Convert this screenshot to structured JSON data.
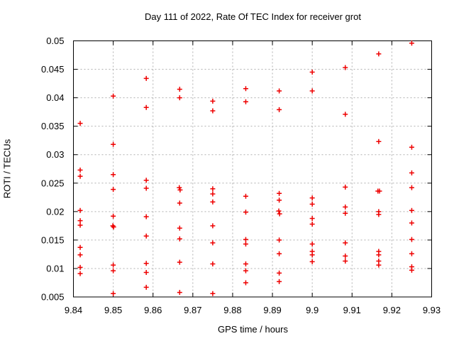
{
  "chart_data": {
    "type": "scatter",
    "title": "Day 111 of 2022, Rate Of TEC Index for receiver grot",
    "xlabel": "GPS time / hours",
    "ylabel": "ROTI / TECUs",
    "xlim": [
      9.84,
      9.93
    ],
    "ylim": [
      0.005,
      0.05
    ],
    "x_ticks": [
      9.84,
      9.85,
      9.86,
      9.87,
      9.88,
      9.89,
      9.9,
      9.91,
      9.92,
      9.93
    ],
    "x_tick_labels": [
      "9.84",
      "9.85",
      "9.86",
      "9.87",
      "9.88",
      "9.89",
      "9.9",
      "9.91",
      "9.92",
      "9.93"
    ],
    "y_ticks": [
      0.005,
      0.01,
      0.015,
      0.02,
      0.025,
      0.03,
      0.035,
      0.04,
      0.045,
      0.05
    ],
    "y_tick_labels": [
      "0.005",
      "0.01",
      "0.015",
      "0.02",
      "0.025",
      "0.03",
      "0.035",
      "0.04",
      "0.045",
      "0.05"
    ],
    "grid": true,
    "legend": "none",
    "marker": {
      "shape": "plus",
      "color": "#ee0000",
      "size": 7
    },
    "colors": {
      "axis": "#000000",
      "grid": "#b0b0b0"
    },
    "series": [
      {
        "name": "ROTI",
        "points": [
          [
            9.8417,
            0.0355
          ],
          [
            9.8417,
            0.0273
          ],
          [
            9.8417,
            0.0262
          ],
          [
            9.8417,
            0.0202
          ],
          [
            9.8417,
            0.0184
          ],
          [
            9.8417,
            0.0176
          ],
          [
            9.8417,
            0.0137
          ],
          [
            9.8417,
            0.0124
          ],
          [
            9.8417,
            0.0102
          ],
          [
            9.8417,
            0.0091
          ],
          [
            9.85,
            0.0403
          ],
          [
            9.85,
            0.0318
          ],
          [
            9.85,
            0.0265
          ],
          [
            9.85,
            0.0239
          ],
          [
            9.85,
            0.0192
          ],
          [
            9.8499,
            0.0175
          ],
          [
            9.8501,
            0.0173
          ],
          [
            9.85,
            0.0106
          ],
          [
            9.85,
            0.0096
          ],
          [
            9.85,
            0.0056
          ],
          [
            9.8583,
            0.0434
          ],
          [
            9.8583,
            0.0383
          ],
          [
            9.8583,
            0.0255
          ],
          [
            9.8583,
            0.0241
          ],
          [
            9.8583,
            0.0191
          ],
          [
            9.8583,
            0.0157
          ],
          [
            9.8583,
            0.0109
          ],
          [
            9.8583,
            0.0093
          ],
          [
            9.8583,
            0.0067
          ],
          [
            9.8667,
            0.0415
          ],
          [
            9.8667,
            0.04
          ],
          [
            9.8666,
            0.0242
          ],
          [
            9.8668,
            0.0238
          ],
          [
            9.8667,
            0.0215
          ],
          [
            9.8667,
            0.0171
          ],
          [
            9.8667,
            0.0152
          ],
          [
            9.8667,
            0.0111
          ],
          [
            9.8667,
            0.0058
          ],
          [
            9.875,
            0.0394
          ],
          [
            9.875,
            0.0377
          ],
          [
            9.875,
            0.024
          ],
          [
            9.875,
            0.0231
          ],
          [
            9.875,
            0.0217
          ],
          [
            9.875,
            0.0175
          ],
          [
            9.875,
            0.0145
          ],
          [
            9.875,
            0.0108
          ],
          [
            9.875,
            0.0056
          ],
          [
            9.8833,
            0.0416
          ],
          [
            9.8833,
            0.0393
          ],
          [
            9.8833,
            0.0227
          ],
          [
            9.8833,
            0.0199
          ],
          [
            9.8833,
            0.0151
          ],
          [
            9.8833,
            0.0143
          ],
          [
            9.8833,
            0.0108
          ],
          [
            9.8833,
            0.0096
          ],
          [
            9.8833,
            0.0075
          ],
          [
            9.8917,
            0.0412
          ],
          [
            9.8917,
            0.0379
          ],
          [
            9.8917,
            0.0232
          ],
          [
            9.8917,
            0.022
          ],
          [
            9.8916,
            0.0201
          ],
          [
            9.8918,
            0.0196
          ],
          [
            9.8917,
            0.015
          ],
          [
            9.8917,
            0.0126
          ],
          [
            9.8917,
            0.0092
          ],
          [
            9.8917,
            0.0077
          ],
          [
            9.9,
            0.0445
          ],
          [
            9.9,
            0.0412
          ],
          [
            9.9,
            0.0224
          ],
          [
            9.9,
            0.0213
          ],
          [
            9.9,
            0.0188
          ],
          [
            9.9,
            0.0178
          ],
          [
            9.9,
            0.0143
          ],
          [
            9.9,
            0.013
          ],
          [
            9.9,
            0.0124
          ],
          [
            9.9,
            0.0112
          ],
          [
            9.9083,
            0.0453
          ],
          [
            9.9083,
            0.0371
          ],
          [
            9.9083,
            0.0243
          ],
          [
            9.9083,
            0.0208
          ],
          [
            9.9083,
            0.0197
          ],
          [
            9.9083,
            0.0145
          ],
          [
            9.9083,
            0.0122
          ],
          [
            9.9083,
            0.0113
          ],
          [
            9.9167,
            0.0477
          ],
          [
            9.9167,
            0.0323
          ],
          [
            9.9165,
            0.0236
          ],
          [
            9.9169,
            0.0236
          ],
          [
            9.9167,
            0.02
          ],
          [
            9.9167,
            0.0195
          ],
          [
            9.9167,
            0.013
          ],
          [
            9.9167,
            0.0124
          ],
          [
            9.9167,
            0.0113
          ],
          [
            9.9167,
            0.0106
          ],
          [
            9.925,
            0.0496
          ],
          [
            9.925,
            0.0313
          ],
          [
            9.925,
            0.0268
          ],
          [
            9.925,
            0.0242
          ],
          [
            9.925,
            0.0202
          ],
          [
            9.925,
            0.018
          ],
          [
            9.925,
            0.0151
          ],
          [
            9.925,
            0.0126
          ],
          [
            9.925,
            0.0103
          ],
          [
            9.925,
            0.0097
          ]
        ]
      }
    ]
  }
}
